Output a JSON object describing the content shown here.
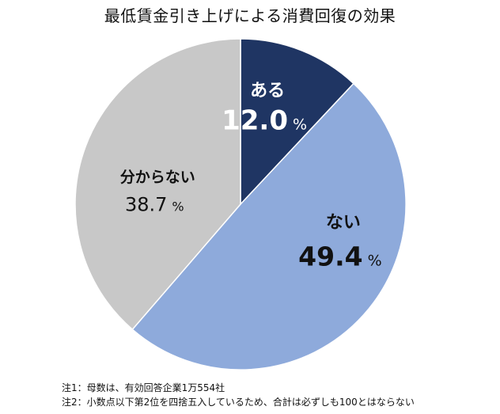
{
  "title": "最低賃金引き上げによる消費回復の効果",
  "chart_data": {
    "type": "pie",
    "title": "最低賃金引き上げによる消費回復の効果",
    "start": "12 o'clock",
    "direction": "clockwise",
    "unit": "%",
    "slices": [
      {
        "label": "ある",
        "value": 12.0,
        "display": "12.0",
        "color": "#1f3563",
        "text_color": "#ffffff"
      },
      {
        "label": "ない",
        "value": 49.4,
        "display": "49.4",
        "color": "#8eaadb",
        "text_color": "#111111"
      },
      {
        "label": "分からない",
        "value": 38.7,
        "display": "38.7",
        "color": "#c8c8c8",
        "text_color": "#111111"
      }
    ]
  },
  "notes": [
    "注1：母数は、有効回答企業1万554社",
    "注2：小数点以下第2位を四捨五入しているため、合計は必ずしも100とはならない"
  ]
}
